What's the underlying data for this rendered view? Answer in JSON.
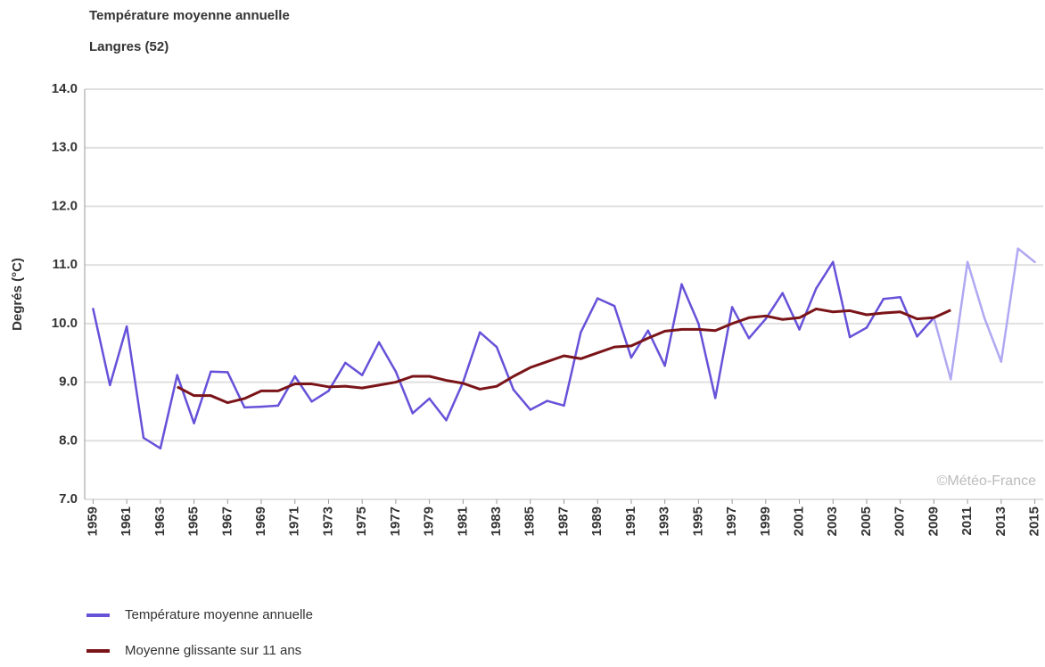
{
  "chart_data": {
    "type": "line",
    "title": "Température moyenne annuelle",
    "subtitle": "Langres (52)",
    "y_label": "Degrés (°C)",
    "watermark": "©Météo-France",
    "x": [
      1959,
      1960,
      1961,
      1962,
      1963,
      1964,
      1965,
      1966,
      1967,
      1968,
      1969,
      1970,
      1971,
      1972,
      1973,
      1974,
      1975,
      1976,
      1977,
      1978,
      1979,
      1980,
      1981,
      1982,
      1983,
      1984,
      1985,
      1986,
      1987,
      1988,
      1989,
      1990,
      1991,
      1992,
      1993,
      1994,
      1995,
      1996,
      1997,
      1998,
      1999,
      2000,
      2001,
      2002,
      2003,
      2004,
      2005,
      2006,
      2007,
      2008,
      2009,
      2010,
      2011,
      2012,
      2013,
      2014,
      2015
    ],
    "series": [
      {
        "name": "Température moyenne annuelle",
        "color": "#6652d9",
        "point_colors": [
          "#6652d9",
          "#6652d9",
          "#6652d9",
          "#6652d9",
          "#6652d9",
          "#6652d9",
          "#6652d9",
          "#6652d9",
          "#6652d9",
          "#6652d9",
          "#6652d9",
          "#6652d9",
          "#6652d9",
          "#6652d9",
          "#6652d9",
          "#6652d9",
          "#6652d9",
          "#6652d9",
          "#6652d9",
          "#6652d9",
          "#6652d9",
          "#6652d9",
          "#6652d9",
          "#6652d9",
          "#6652d9",
          "#6652d9",
          "#6652d9",
          "#6652d9",
          "#6652d9",
          "#6652d9",
          "#6652d9",
          "#6652d9",
          "#6652d9",
          "#6652d9",
          "#6652d9",
          "#6652d9",
          "#6652d9",
          "#6652d9",
          "#6652d9",
          "#6652d9",
          "#6652d9",
          "#6652d9",
          "#6652d9",
          "#6652d9",
          "#6652d9",
          "#6652d9",
          "#6652d9",
          "#6652d9",
          "#6652d9",
          "#6652d9",
          "#6652d9",
          "#b0a8f2",
          "#b0a8f2",
          "#b0a8f2",
          "#b0a8f2",
          "#b0a8f2",
          "#b0a8f2"
        ],
        "values": [
          10.25,
          8.95,
          9.95,
          8.05,
          7.87,
          9.12,
          8.3,
          9.18,
          9.17,
          8.57,
          8.58,
          8.6,
          9.1,
          8.67,
          8.85,
          9.33,
          9.12,
          9.68,
          9.18,
          8.47,
          8.72,
          8.35,
          9.0,
          9.85,
          9.6,
          8.87,
          8.53,
          8.68,
          8.6,
          9.85,
          10.43,
          10.3,
          9.42,
          9.88,
          9.28,
          10.67,
          10.0,
          8.73,
          10.28,
          9.75,
          10.08,
          10.52,
          9.9,
          10.6,
          11.05,
          9.77,
          9.93,
          10.42,
          10.45,
          9.78,
          10.1,
          9.05,
          11.05,
          10.1,
          9.35,
          11.28,
          11.05
        ]
      },
      {
        "name": "Moyenne glissante sur 11 ans",
        "color": "#7a1418",
        "values": [
          null,
          null,
          null,
          null,
          null,
          8.92,
          8.77,
          8.77,
          8.65,
          8.72,
          8.85,
          8.85,
          8.97,
          8.97,
          8.92,
          8.93,
          8.9,
          8.95,
          9.0,
          9.1,
          9.1,
          9.03,
          8.98,
          8.88,
          8.93,
          9.1,
          9.25,
          9.35,
          9.45,
          9.4,
          9.5,
          9.6,
          9.62,
          9.75,
          9.87,
          9.9,
          9.9,
          9.88,
          10.0,
          10.1,
          10.13,
          10.07,
          10.1,
          10.25,
          10.2,
          10.22,
          10.15,
          10.18,
          10.2,
          10.08,
          10.1,
          10.23,
          null,
          null,
          null,
          null,
          null
        ]
      }
    ],
    "xlim": [
      1958.5,
      2015.5
    ],
    "xticks": [
      1959,
      1961,
      1963,
      1965,
      1967,
      1969,
      1971,
      1973,
      1975,
      1977,
      1979,
      1981,
      1983,
      1985,
      1987,
      1989,
      1991,
      1993,
      1995,
      1997,
      1999,
      2001,
      2003,
      2005,
      2007,
      2009,
      2011,
      2013,
      2015
    ],
    "ylim": [
      7,
      14
    ],
    "yticks": [
      {
        "value": 7,
        "label": "7.0"
      },
      {
        "value": 8,
        "label": "8.0"
      },
      {
        "value": 9,
        "label": "9.0"
      },
      {
        "value": 10,
        "label": "10.0"
      },
      {
        "value": 11,
        "label": "11.0"
      },
      {
        "value": 12,
        "label": "12.0"
      },
      {
        "value": 13,
        "label": "13.0"
      },
      {
        "value": 14,
        "label": "14.0"
      }
    ],
    "grid": true,
    "legend": "bottom-left"
  }
}
